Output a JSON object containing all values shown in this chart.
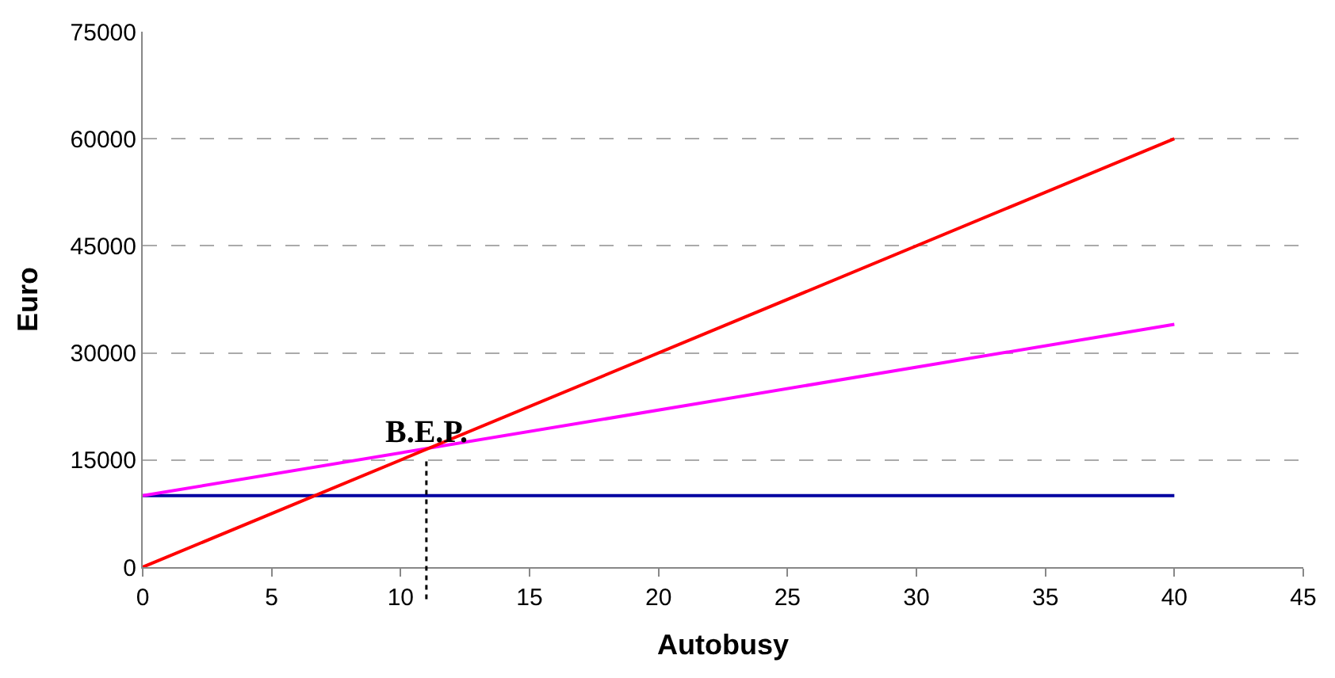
{
  "chart_data": {
    "type": "line",
    "xlabel": "Autobusy",
    "ylabel": "Euro",
    "x": [
      0,
      40
    ],
    "series": [
      {
        "color": "#0000a0",
        "values": [
          10000,
          10000
        ]
      },
      {
        "color": "#ff00ff",
        "values": [
          10000,
          34000
        ]
      },
      {
        "color": "#ff0000",
        "values": [
          0,
          60000
        ]
      }
    ],
    "xlim": [
      0,
      45
    ],
    "xticks": [
      0,
      5,
      10,
      15,
      20,
      25,
      30,
      35,
      40,
      45
    ],
    "ylim": [
      0,
      75000
    ],
    "yticks": [
      0,
      15000,
      30000,
      45000,
      60000,
      75000
    ],
    "ref_lines": [
      {
        "axis": "x",
        "value": 11,
        "label": "B.E.P.",
        "color": "#000000",
        "line_style": "dotted"
      }
    ],
    "grid": "y",
    "marker": "none",
    "line_style": "solid"
  }
}
